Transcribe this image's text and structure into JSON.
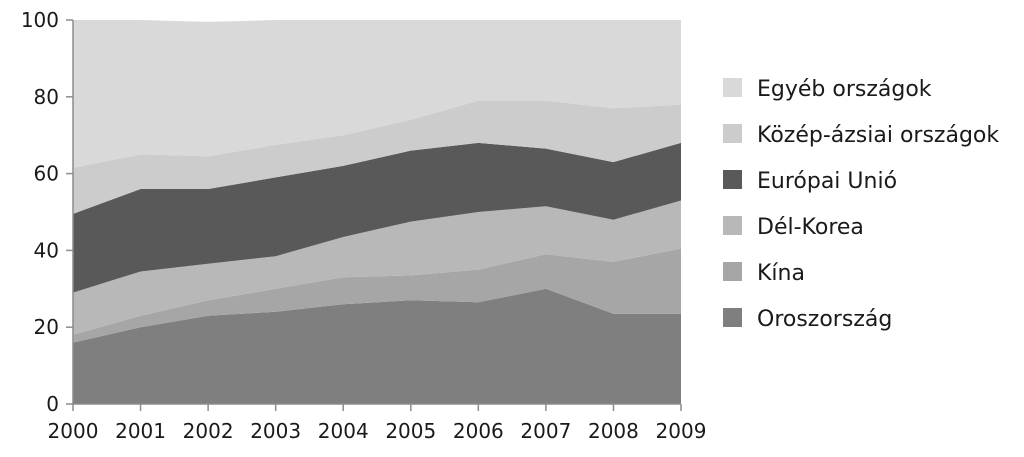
{
  "chart_data": {
    "type": "area",
    "stacked": true,
    "x": [
      "2000",
      "2001",
      "2002",
      "2003",
      "2004",
      "2005",
      "2006",
      "2007",
      "2008",
      "2009"
    ],
    "ylim": [
      0,
      100
    ],
    "y_ticks": [
      "0",
      "20",
      "40",
      "60",
      "80",
      "100"
    ],
    "grid": false,
    "legend_position": "right",
    "series": [
      {
        "name": "Oroszország",
        "color": "#7f7f7f",
        "values": [
          16,
          20,
          23,
          24,
          26,
          27,
          26.5,
          30,
          23.5,
          23.5
        ]
      },
      {
        "name": "Kína",
        "color": "#a6a6a6",
        "values": [
          2,
          3,
          4,
          6,
          7,
          6.5,
          8.5,
          9,
          13.5,
          17
        ]
      },
      {
        "name": "Dél-Korea",
        "color": "#b8b8b8",
        "values": [
          11,
          11.5,
          9.5,
          8.5,
          10.5,
          14,
          15,
          12.5,
          11,
          12.5
        ]
      },
      {
        "name": "Európai Unió",
        "color": "#595959",
        "values": [
          20.5,
          21.5,
          19.5,
          20.5,
          18.5,
          18.5,
          18,
          15,
          15,
          15
        ]
      },
      {
        "name": "Közép-ázsiai országok",
        "color": "#cccccc",
        "values": [
          12,
          9,
          8.5,
          8.5,
          8,
          8,
          11,
          12.5,
          14,
          10
        ]
      },
      {
        "name": "Egyéb országok",
        "color": "#d9d9d9",
        "values": [
          38.5,
          35,
          35,
          32.5,
          30,
          26,
          21,
          21,
          23,
          22
        ]
      }
    ]
  }
}
